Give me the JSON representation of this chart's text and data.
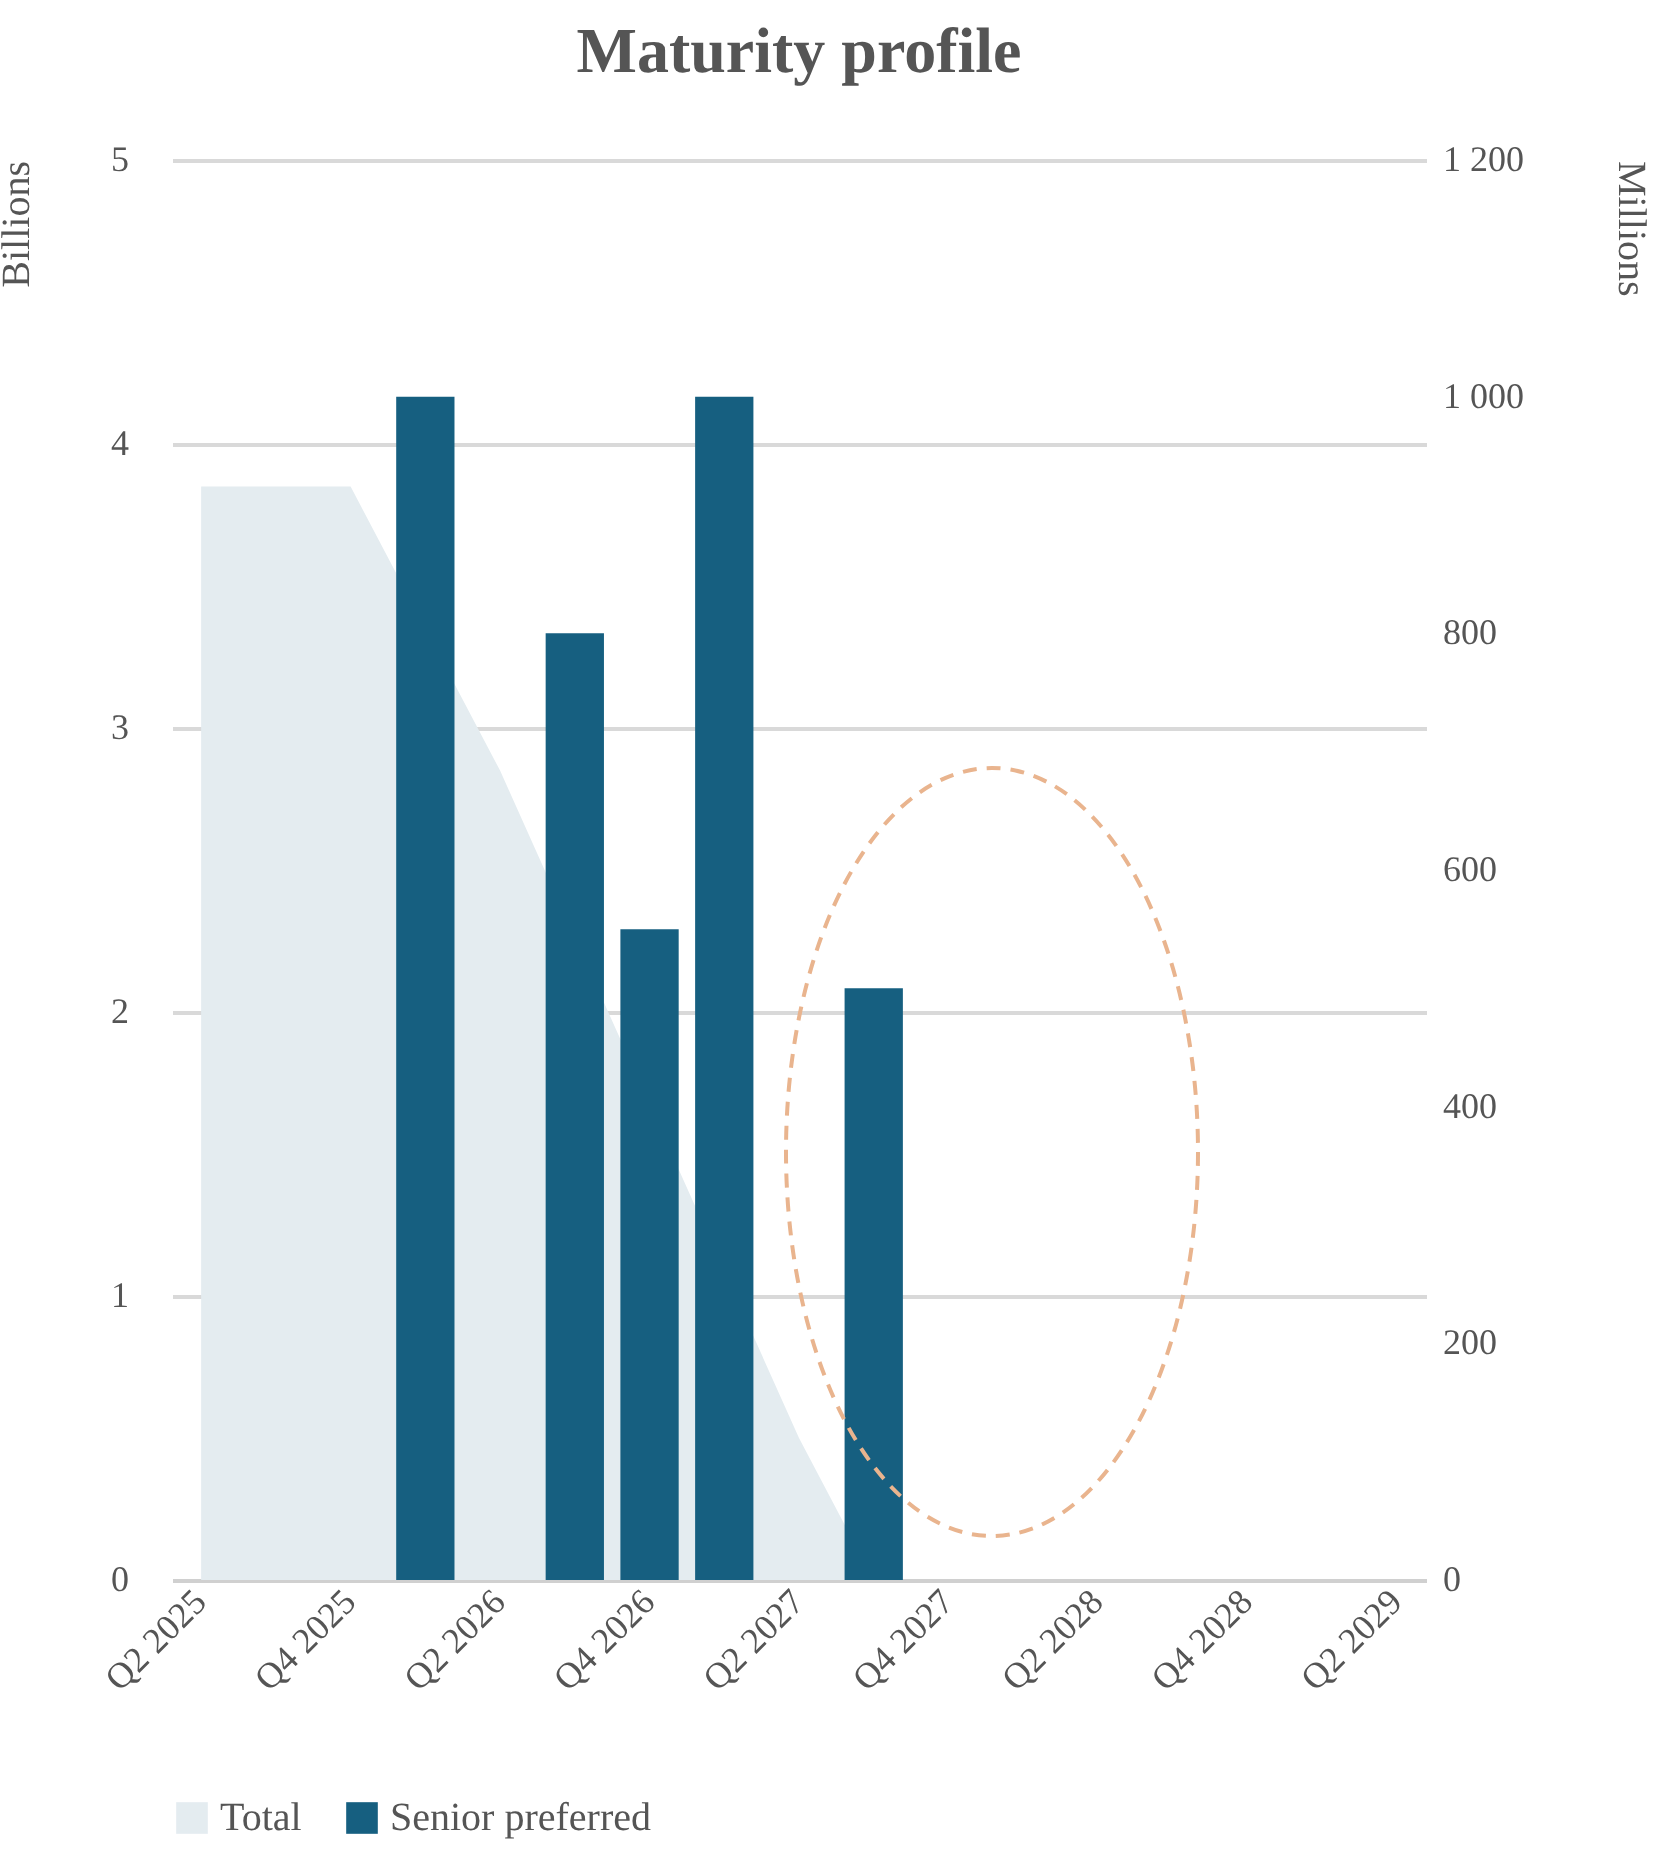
{
  "chart_data": {
    "type": "bar",
    "title": "Maturity profile",
    "ylabel": "Billions",
    "y2label": "Millions",
    "categories": [
      "Q2 2025",
      null,
      "Q4 2025",
      null,
      "Q2 2026",
      null,
      "Q4 2026",
      null,
      "Q2 2027",
      null,
      "Q4 2027",
      null,
      "Q2 2028",
      null,
      "Q4 2028",
      null,
      "Q2 2029"
    ],
    "series": [
      {
        "name": "Total",
        "type": "area",
        "color": "#e4ecf0",
        "values": [
          3.85,
          3.85,
          3.85,
          null,
          2.85,
          null,
          null,
          null,
          0.5,
          0,
          0,
          0,
          0,
          0,
          0,
          0,
          0
        ]
      },
      {
        "name": "Senior preferred",
        "axis": "y2",
        "color": "#165f80",
        "values": [
          null,
          null,
          null,
          1000,
          null,
          800,
          550,
          1000,
          null,
          500,
          null,
          null,
          null,
          null,
          null,
          null,
          null
        ]
      }
    ],
    "ylim": [
      0,
      5
    ],
    "yticks": [
      0,
      1,
      2,
      3,
      4,
      5
    ],
    "y2lim": [
      0,
      1200
    ],
    "y2ticks": [
      0,
      200,
      400,
      600,
      800,
      {
        "value": 1000,
        "label": "1 000"
      },
      {
        "value": 1200,
        "label": "1 200"
      }
    ],
    "grid": "y",
    "legend": "bottom"
  }
}
